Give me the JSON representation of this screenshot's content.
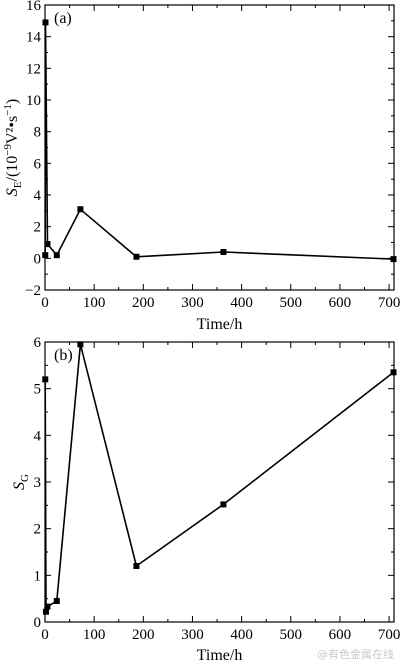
{
  "watermark": "@有色金属在线",
  "chart_data": [
    {
      "type": "line",
      "panel_label": "(a)",
      "xlabel": "Time/h",
      "ylabel": {
        "sym": "S",
        "sub": "E",
        "rest": "/(10",
        "exp": "−9",
        "unit": "V²•s",
        "unitExp": "−1",
        "close": ")"
      },
      "xlim": [
        0,
        710
      ],
      "ylim": [
        -2,
        16
      ],
      "xticks": [
        0,
        100,
        200,
        300,
        400,
        500,
        600,
        700
      ],
      "yticks": [
        -2,
        0,
        2,
        4,
        6,
        8,
        10,
        12,
        14,
        16
      ],
      "tick_labels_x": [
        "0",
        "100",
        "200",
        "300",
        "400",
        "500",
        "600",
        "700"
      ],
      "tick_labels_y": [
        "−2",
        "0",
        "2",
        "4",
        "6",
        "8",
        "10",
        "12",
        "14",
        "16"
      ],
      "grid": false,
      "series": [
        {
          "x": [
            0.5,
            1,
            5,
            24,
            72,
            186,
            363,
            709
          ],
          "y": [
            0.2,
            14.9,
            0.9,
            0.2,
            3.1,
            0.1,
            0.4,
            -0.05
          ]
        }
      ]
    },
    {
      "type": "line",
      "panel_label": "(b)",
      "xlabel": "Time/h",
      "ylabel": {
        "sym": "S",
        "sub": "G"
      },
      "xlim": [
        0,
        710
      ],
      "ylim": [
        0,
        6
      ],
      "xticks": [
        0,
        100,
        200,
        300,
        400,
        500,
        600,
        700
      ],
      "yticks": [
        0,
        1,
        2,
        3,
        4,
        5,
        6
      ],
      "tick_labels_x": [
        "0",
        "100",
        "200",
        "300",
        "400",
        "500",
        "600",
        "700"
      ],
      "tick_labels_y": [
        "0",
        "1",
        "2",
        "3",
        "4",
        "5",
        "6"
      ],
      "grid": false,
      "series": [
        {
          "x": [
            0.5,
            2,
            5,
            24,
            72,
            186,
            363,
            709
          ],
          "y": [
            5.2,
            0.22,
            0.33,
            0.45,
            5.95,
            1.2,
            2.52,
            5.35
          ]
        }
      ]
    }
  ]
}
